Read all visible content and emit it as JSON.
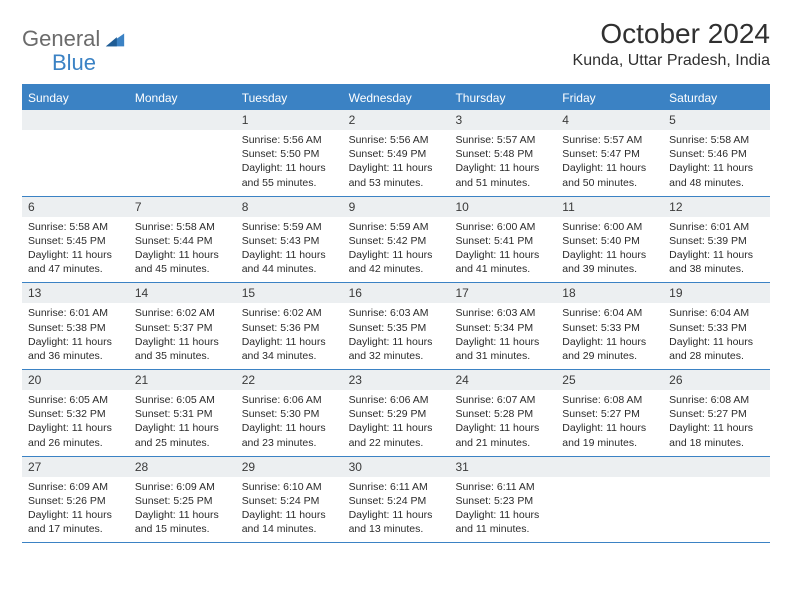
{
  "brand": {
    "part1": "General",
    "part2": "Blue"
  },
  "title": "October 2024",
  "location": "Kunda, Uttar Pradesh, India",
  "colors": {
    "accent": "#3b82c4",
    "daynum_bg": "#eceff1",
    "text": "#2b2b2b",
    "logo_gray": "#6b6b6b"
  },
  "weekdays": [
    "Sunday",
    "Monday",
    "Tuesday",
    "Wednesday",
    "Thursday",
    "Friday",
    "Saturday"
  ],
  "weeks": [
    [
      null,
      null,
      {
        "n": "1",
        "sunrise": "5:56 AM",
        "sunset": "5:50 PM",
        "daylight": "11 hours and 55 minutes."
      },
      {
        "n": "2",
        "sunrise": "5:56 AM",
        "sunset": "5:49 PM",
        "daylight": "11 hours and 53 minutes."
      },
      {
        "n": "3",
        "sunrise": "5:57 AM",
        "sunset": "5:48 PM",
        "daylight": "11 hours and 51 minutes."
      },
      {
        "n": "4",
        "sunrise": "5:57 AM",
        "sunset": "5:47 PM",
        "daylight": "11 hours and 50 minutes."
      },
      {
        "n": "5",
        "sunrise": "5:58 AM",
        "sunset": "5:46 PM",
        "daylight": "11 hours and 48 minutes."
      }
    ],
    [
      {
        "n": "6",
        "sunrise": "5:58 AM",
        "sunset": "5:45 PM",
        "daylight": "11 hours and 47 minutes."
      },
      {
        "n": "7",
        "sunrise": "5:58 AM",
        "sunset": "5:44 PM",
        "daylight": "11 hours and 45 minutes."
      },
      {
        "n": "8",
        "sunrise": "5:59 AM",
        "sunset": "5:43 PM",
        "daylight": "11 hours and 44 minutes."
      },
      {
        "n": "9",
        "sunrise": "5:59 AM",
        "sunset": "5:42 PM",
        "daylight": "11 hours and 42 minutes."
      },
      {
        "n": "10",
        "sunrise": "6:00 AM",
        "sunset": "5:41 PM",
        "daylight": "11 hours and 41 minutes."
      },
      {
        "n": "11",
        "sunrise": "6:00 AM",
        "sunset": "5:40 PM",
        "daylight": "11 hours and 39 minutes."
      },
      {
        "n": "12",
        "sunrise": "6:01 AM",
        "sunset": "5:39 PM",
        "daylight": "11 hours and 38 minutes."
      }
    ],
    [
      {
        "n": "13",
        "sunrise": "6:01 AM",
        "sunset": "5:38 PM",
        "daylight": "11 hours and 36 minutes."
      },
      {
        "n": "14",
        "sunrise": "6:02 AM",
        "sunset": "5:37 PM",
        "daylight": "11 hours and 35 minutes."
      },
      {
        "n": "15",
        "sunrise": "6:02 AM",
        "sunset": "5:36 PM",
        "daylight": "11 hours and 34 minutes."
      },
      {
        "n": "16",
        "sunrise": "6:03 AM",
        "sunset": "5:35 PM",
        "daylight": "11 hours and 32 minutes."
      },
      {
        "n": "17",
        "sunrise": "6:03 AM",
        "sunset": "5:34 PM",
        "daylight": "11 hours and 31 minutes."
      },
      {
        "n": "18",
        "sunrise": "6:04 AM",
        "sunset": "5:33 PM",
        "daylight": "11 hours and 29 minutes."
      },
      {
        "n": "19",
        "sunrise": "6:04 AM",
        "sunset": "5:33 PM",
        "daylight": "11 hours and 28 minutes."
      }
    ],
    [
      {
        "n": "20",
        "sunrise": "6:05 AM",
        "sunset": "5:32 PM",
        "daylight": "11 hours and 26 minutes."
      },
      {
        "n": "21",
        "sunrise": "6:05 AM",
        "sunset": "5:31 PM",
        "daylight": "11 hours and 25 minutes."
      },
      {
        "n": "22",
        "sunrise": "6:06 AM",
        "sunset": "5:30 PM",
        "daylight": "11 hours and 23 minutes."
      },
      {
        "n": "23",
        "sunrise": "6:06 AM",
        "sunset": "5:29 PM",
        "daylight": "11 hours and 22 minutes."
      },
      {
        "n": "24",
        "sunrise": "6:07 AM",
        "sunset": "5:28 PM",
        "daylight": "11 hours and 21 minutes."
      },
      {
        "n": "25",
        "sunrise": "6:08 AM",
        "sunset": "5:27 PM",
        "daylight": "11 hours and 19 minutes."
      },
      {
        "n": "26",
        "sunrise": "6:08 AM",
        "sunset": "5:27 PM",
        "daylight": "11 hours and 18 minutes."
      }
    ],
    [
      {
        "n": "27",
        "sunrise": "6:09 AM",
        "sunset": "5:26 PM",
        "daylight": "11 hours and 17 minutes."
      },
      {
        "n": "28",
        "sunrise": "6:09 AM",
        "sunset": "5:25 PM",
        "daylight": "11 hours and 15 minutes."
      },
      {
        "n": "29",
        "sunrise": "6:10 AM",
        "sunset": "5:24 PM",
        "daylight": "11 hours and 14 minutes."
      },
      {
        "n": "30",
        "sunrise": "6:11 AM",
        "sunset": "5:24 PM",
        "daylight": "11 hours and 13 minutes."
      },
      {
        "n": "31",
        "sunrise": "6:11 AM",
        "sunset": "5:23 PM",
        "daylight": "11 hours and 11 minutes."
      },
      null,
      null
    ]
  ],
  "labels": {
    "sunrise": "Sunrise: ",
    "sunset": "Sunset: ",
    "daylight": "Daylight: "
  }
}
